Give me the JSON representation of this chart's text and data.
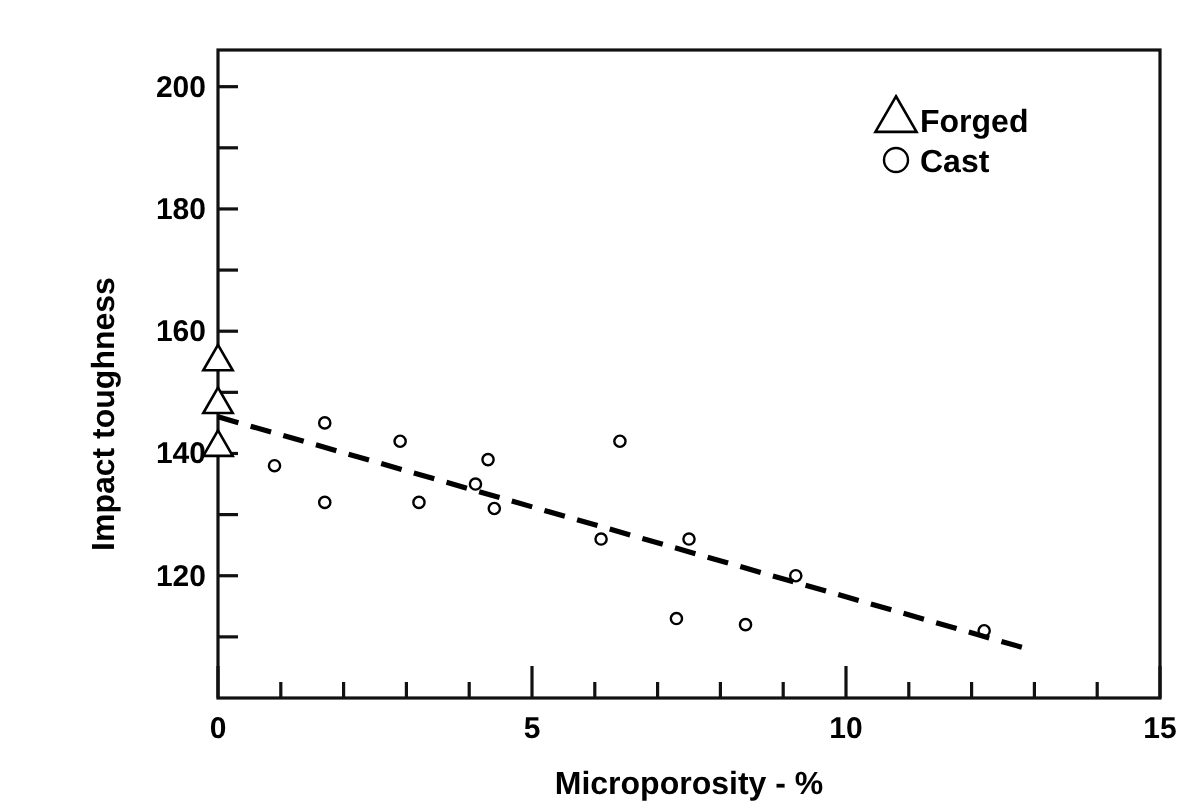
{
  "chart_data": {
    "type": "scatter",
    "xlabel": "Microporosity - %",
    "ylabel": "Impact toughness",
    "xlim": [
      0,
      15
    ],
    "ylim": [
      100,
      206
    ],
    "xticks": [
      0,
      {
        "value": 1,
        "label": null
      },
      {
        "value": 2,
        "label": null
      },
      {
        "value": 3,
        "label": null
      },
      {
        "value": 4,
        "label": null
      },
      5,
      {
        "value": 6,
        "label": null
      },
      {
        "value": 7,
        "label": null
      },
      {
        "value": 8,
        "label": null
      },
      {
        "value": 9,
        "label": null
      },
      10,
      {
        "value": 11,
        "label": null
      },
      {
        "value": 12,
        "label": null
      },
      {
        "value": 13,
        "label": null
      },
      {
        "value": 14,
        "label": null
      },
      15
    ],
    "yticks": [
      {
        "value": 110,
        "label": null
      },
      120,
      {
        "value": 130,
        "label": null
      },
      140,
      {
        "value": 150,
        "label": null
      },
      160,
      {
        "value": 170,
        "label": null
      },
      180,
      {
        "value": 190,
        "label": null
      },
      200
    ],
    "grid": false,
    "legend": "top right",
    "series": [
      {
        "name": "Forged",
        "type": "scatter",
        "marker": "triangle",
        "color": "#000000",
        "x": [
          0,
          0,
          0
        ],
        "values": [
          155,
          148,
          141
        ]
      },
      {
        "name": "Cast",
        "type": "scatter",
        "marker": "circle",
        "color": "#000000",
        "x": [
          0.9,
          1.7,
          1.7,
          2.9,
          3.2,
          4.1,
          4.3,
          4.4,
          6.1,
          6.4,
          7.5,
          7.3,
          8.4,
          9.2,
          12.2
        ],
        "values": [
          138,
          145,
          132,
          142,
          132,
          135,
          139,
          131,
          126,
          142,
          126,
          113,
          112,
          120,
          111
        ]
      },
      {
        "type": "line",
        "line_style": "dashed",
        "marker": "none",
        "color": "#000000",
        "x": [
          0,
          12.8
        ],
        "values": [
          146,
          108.3
        ]
      }
    ]
  }
}
